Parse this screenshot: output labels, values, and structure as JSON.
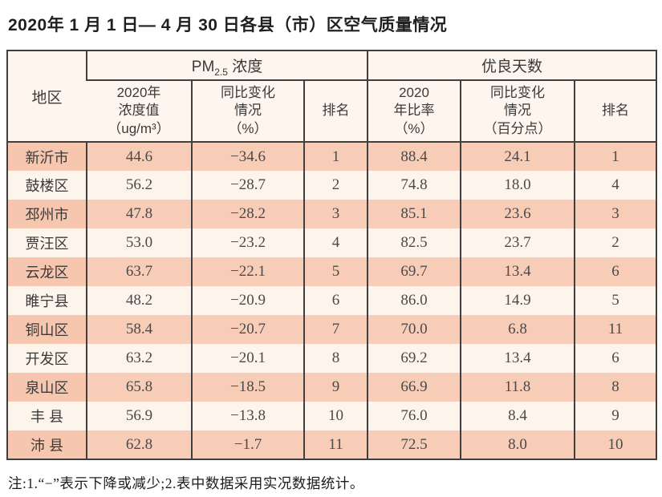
{
  "title": "2020年 1 月 1 日— 4 月 30 日各县（市）区空气质量情况",
  "table": {
    "header": {
      "region": "地区",
      "pm25_group": {
        "pm": "PM",
        "sub": "2.5",
        "rest": " 浓度"
      },
      "good_days_group": "优良天数",
      "sub_headers": {
        "pm_value": "2020年\n浓度值\n（ug/m³）",
        "pm_change": "同比变化\n情况\n（%）",
        "pm_rank": "排名",
        "good_ratio": "2020\n年比率\n（%）",
        "good_change": "同比变化\n情况\n（百分点）",
        "good_rank": "排名"
      }
    },
    "rows": [
      {
        "region": "新沂市",
        "pm_value": "44.6",
        "pm_change": "−34.6",
        "pm_rank": "1",
        "good_ratio": "88.4",
        "good_change": "24.1",
        "good_rank": "1"
      },
      {
        "region": "鼓楼区",
        "pm_value": "56.2",
        "pm_change": "−28.7",
        "pm_rank": "2",
        "good_ratio": "74.8",
        "good_change": "18.0",
        "good_rank": "4"
      },
      {
        "region": "邳州市",
        "pm_value": "47.8",
        "pm_change": "−28.2",
        "pm_rank": "3",
        "good_ratio": "85.1",
        "good_change": "23.6",
        "good_rank": "3"
      },
      {
        "region": "贾汪区",
        "pm_value": "53.0",
        "pm_change": "−23.2",
        "pm_rank": "4",
        "good_ratio": "82.5",
        "good_change": "23.7",
        "good_rank": "2"
      },
      {
        "region": "云龙区",
        "pm_value": "63.7",
        "pm_change": "−22.1",
        "pm_rank": "5",
        "good_ratio": "69.7",
        "good_change": "13.4",
        "good_rank": "6"
      },
      {
        "region": "睢宁县",
        "pm_value": "48.2",
        "pm_change": "−20.9",
        "pm_rank": "6",
        "good_ratio": "86.0",
        "good_change": "14.9",
        "good_rank": "5"
      },
      {
        "region": "铜山区",
        "pm_value": "58.4",
        "pm_change": "−20.7",
        "pm_rank": "7",
        "good_ratio": "70.0",
        "good_change": "6.8",
        "good_rank": "11"
      },
      {
        "region": "开发区",
        "pm_value": "63.2",
        "pm_change": "−20.1",
        "pm_rank": "8",
        "good_ratio": "69.2",
        "good_change": "13.4",
        "good_rank": "6"
      },
      {
        "region": "泉山区",
        "pm_value": "65.8",
        "pm_change": "−18.5",
        "pm_rank": "9",
        "good_ratio": "66.9",
        "good_change": "11.8",
        "good_rank": "8"
      },
      {
        "region": "丰 县",
        "pm_value": "56.9",
        "pm_change": "−13.8",
        "pm_rank": "10",
        "good_ratio": "76.0",
        "good_change": "8.4",
        "good_rank": "9"
      },
      {
        "region": "沛 县",
        "pm_value": "62.8",
        "pm_change": "−1.7",
        "pm_rank": "11",
        "good_ratio": "72.5",
        "good_change": "8.0",
        "good_rank": "10"
      }
    ]
  },
  "footnote": "注:1.“−”表示下降或减少;2.表中数据采用实况数据统计。",
  "colors": {
    "row_salmon": "#f8cdb7",
    "row_cream": "#fdf4ec",
    "header_bg": "#fdf5ee",
    "border": "#3f3f3f"
  }
}
